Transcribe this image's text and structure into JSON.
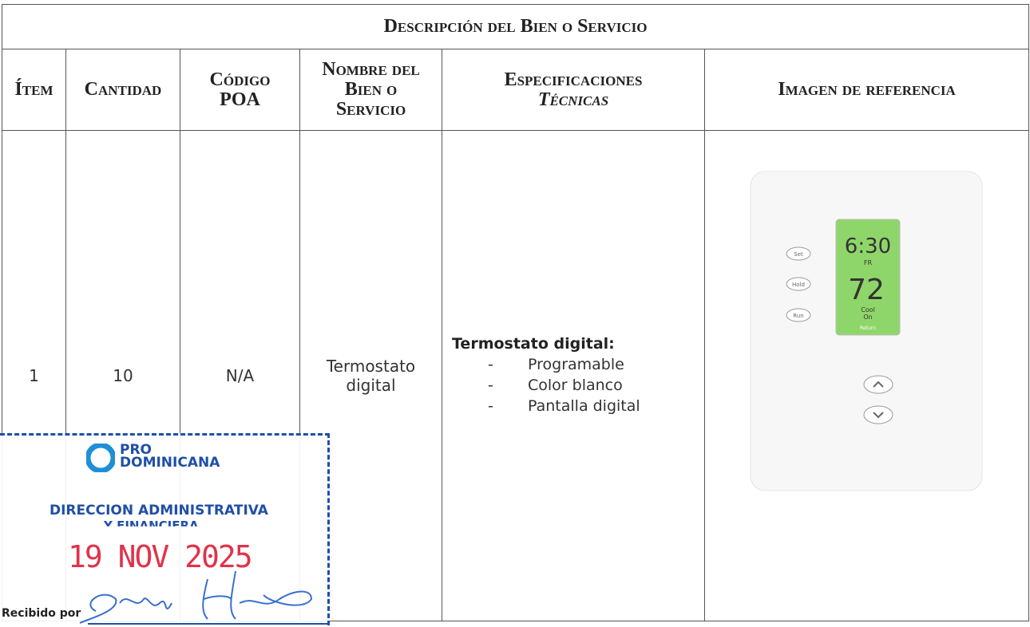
{
  "table": {
    "title": "Descripción del Bien o Servicio",
    "headers": [
      "Ítem",
      "Cantidad",
      "Código POA",
      "Nombre del Bien o Servicio",
      "Especificaciones",
      "Técnicas",
      "Imagen de referencia"
    ],
    "rows": [
      {
        "item": 1,
        "cantidad": 10,
        "codigo_poa": "N/A",
        "nombre": "Termostato digital",
        "especificaciones": {
          "title": "Termostato digital:",
          "items": [
            "Programable",
            "Color blanco",
            "Pantalla digital"
          ]
        }
      }
    ]
  },
  "image": {
    "time": "6:30",
    "day": "FR",
    "temperature": "72",
    "mode": "Cool",
    "state": "On",
    "footer": "Return",
    "buttons": [
      "Set",
      "Hold",
      "Run"
    ]
  },
  "stamp": {
    "logo": "PRO",
    "logo2": "DOMINICANA",
    "line1": "DIRECCION ADMINISTRATIVA",
    "line2": "Y FINANCIERA",
    "date": "19 NOV 2025",
    "received": "Recibido por"
  }
}
